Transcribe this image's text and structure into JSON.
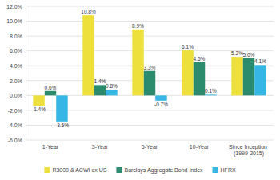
{
  "chart_data": {
    "type": "bar",
    "categories": [
      "1-Year",
      "3-Year",
      "5-Year",
      "10-Year",
      "Since Inception (1999-2015)"
    ],
    "series": [
      {
        "name": "R3000 & ACWI ex US",
        "color": "#ede03c",
        "values": [
          -1.4,
          10.8,
          8.9,
          6.1,
          5.2
        ],
        "value_labels": [
          "-1.4%",
          "10.8%",
          "8.9%",
          "6.1%",
          "5.2%"
        ]
      },
      {
        "name": "Barclays Aggregate Bond Index",
        "color": "#2a8c6c",
        "values": [
          0.6,
          1.4,
          3.3,
          4.5,
          5.0
        ],
        "value_labels": [
          "0.6%",
          "1.4%",
          "3.3%",
          "4.5%",
          "5.0%"
        ]
      },
      {
        "name": "HFRX",
        "color": "#35b6e4",
        "values": [
          -3.5,
          0.8,
          -0.7,
          0.1,
          4.1
        ],
        "value_labels": [
          "-3.5%",
          "0.8%",
          "-0.7%",
          "0.1%",
          "4.1%"
        ]
      }
    ],
    "ylim": [
      -6,
      12
    ],
    "yticks": [
      {
        "value": -6,
        "label": "-6.0%"
      },
      {
        "value": -4,
        "label": "-4.0%"
      },
      {
        "value": -2,
        "label": "-2.0%"
      },
      {
        "value": 0,
        "label": "0.0%"
      },
      {
        "value": 2,
        "label": "2.0%"
      },
      {
        "value": 4,
        "label": "4.0%"
      },
      {
        "value": 6,
        "label": "6.0%"
      },
      {
        "value": 8,
        "label": "8.0%"
      },
      {
        "value": 10,
        "label": "10.0%"
      },
      {
        "value": 12,
        "label": "12.0%"
      }
    ],
    "grid": true,
    "data_labels": true,
    "legend": "bottom"
  }
}
